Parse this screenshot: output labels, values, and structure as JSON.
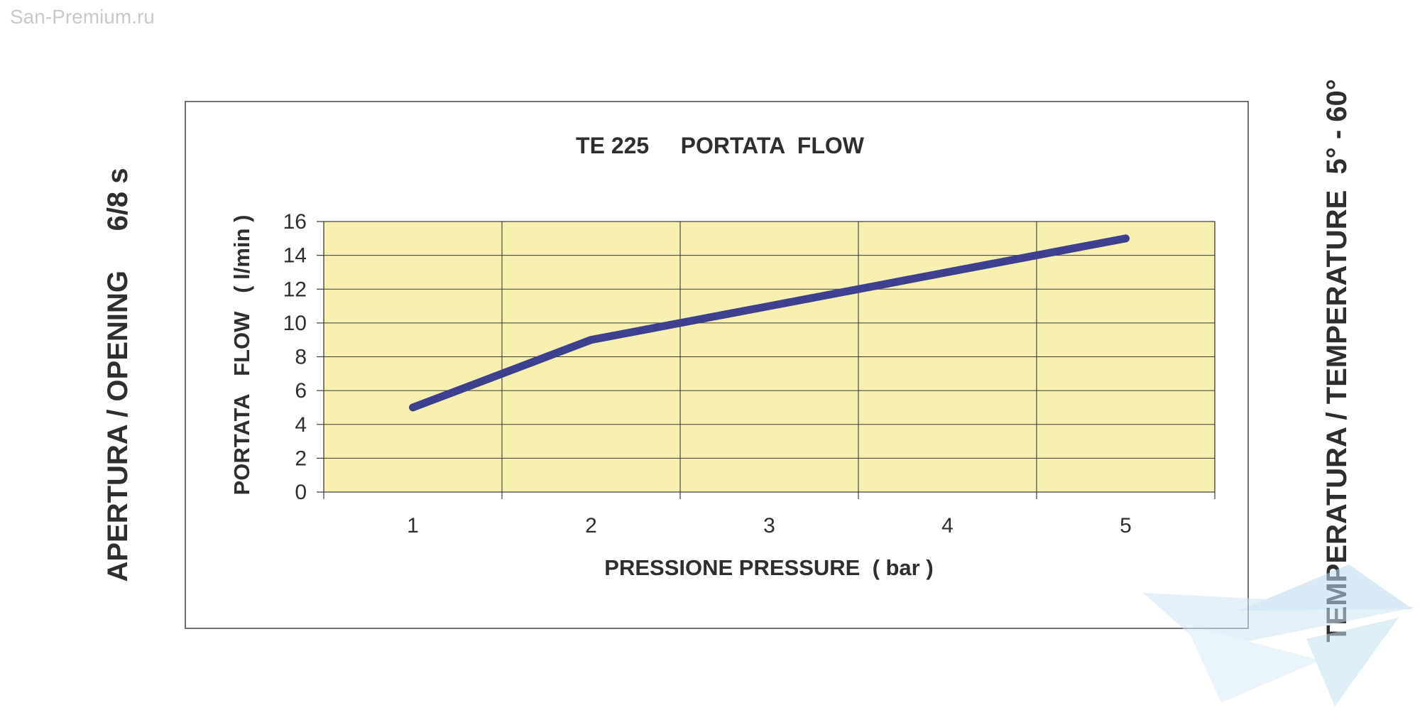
{
  "watermark": "San-Premium.ru",
  "side_labels": {
    "left": "APERTURA / OPENING     6/8 s",
    "right": "TEMPERATURA / TEMPERATURE  5° - 60°"
  },
  "colors": {
    "plot_background": "#f8f0b0",
    "line": "#3d3f8f",
    "grid": "#3a3a3a",
    "text": "#2e2e2e"
  },
  "chart_data": {
    "type": "line",
    "title": "TE 225     PORTATA  FLOW",
    "xlabel": "PRESSIONE PRESSURE  ( bar )",
    "ylabel": "PORTATA   FLOW   ( l/min )",
    "categories": [
      "1",
      "2",
      "3",
      "4",
      "5"
    ],
    "series": [
      {
        "values": [
          5,
          9,
          11,
          13,
          15
        ]
      }
    ],
    "ylim": [
      0,
      16
    ],
    "yticks": [
      "0",
      "2",
      "4",
      "6",
      "8",
      "10",
      "12",
      "14",
      "16"
    ],
    "grid": true,
    "legend": "none"
  }
}
